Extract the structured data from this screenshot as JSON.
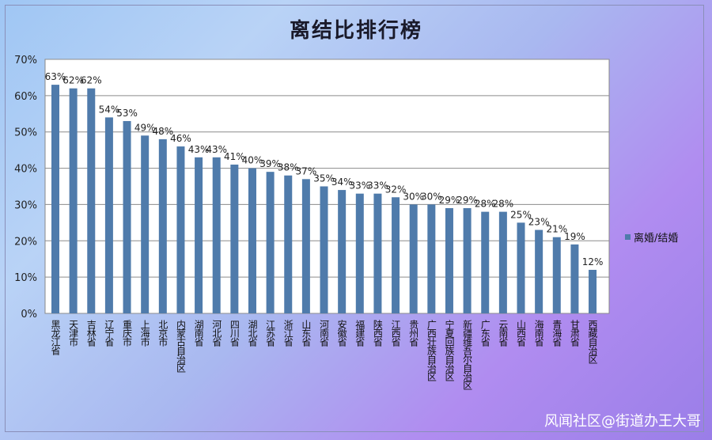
{
  "chart_data": {
    "type": "bar",
    "title": "离结比排行榜",
    "xlabel": "",
    "ylabel": "",
    "ylim": [
      0,
      70
    ],
    "yticks": [
      "0%",
      "10%",
      "20%",
      "30%",
      "40%",
      "50%",
      "60%",
      "70%"
    ],
    "grid": true,
    "legend_position": "right",
    "categories": [
      "黑龙江省",
      "天津市",
      "吉林省",
      "辽宁省",
      "重庆市",
      "上海市",
      "北京市",
      "内蒙古自治区",
      "湖南省",
      "河北省",
      "四川省",
      "湖北省",
      "江苏省",
      "浙江省",
      "山东省",
      "河南省",
      "安徽省",
      "福建省",
      "陕西省",
      "江西省",
      "贵州省",
      "广西壮族自治区",
      "宁夏回族自治区",
      "新疆维吾尔自治区",
      "广东省",
      "云南省",
      "山西省",
      "海南省",
      "青海省",
      "甘肃省",
      "西藏自治区"
    ],
    "series": [
      {
        "name": "离婚/结婚",
        "color": "#4f7bab",
        "values": [
          63,
          62,
          62,
          54,
          53,
          49,
          48,
          46,
          43,
          43,
          41,
          40,
          39,
          38,
          37,
          35,
          34,
          33,
          33,
          32,
          30,
          30,
          29,
          29,
          28,
          28,
          25,
          23,
          21,
          19,
          12
        ],
        "labels": [
          "63%",
          "62%",
          "62%",
          "54%",
          "53%",
          "49%",
          "48%",
          "46%",
          "43%",
          "43%",
          "41%",
          "40%",
          "39%",
          "38%",
          "37%",
          "35%",
          "34%",
          "33%",
          "33%",
          "32%",
          "30%",
          "30%",
          "29%",
          "29%",
          "28%",
          "28%",
          "25%",
          "23%",
          "21%",
          "19%",
          "12%"
        ]
      }
    ]
  },
  "watermark": "风闻社区@街道办王大哥"
}
